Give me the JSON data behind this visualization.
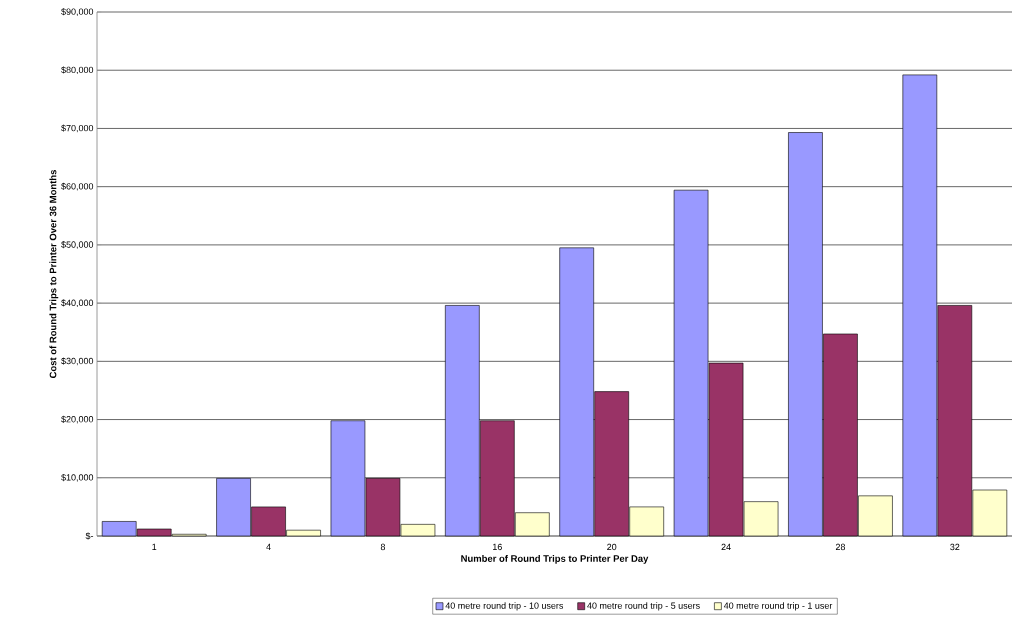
{
  "chart_data": {
    "type": "bar",
    "xlabel": "Number of Round Trips to Printer Per Day",
    "ylabel": "Cost of Round Trips to Printer Over 36 Months",
    "categories": [
      "1",
      "4",
      "8",
      "16",
      "20",
      "24",
      "28",
      "32"
    ],
    "series": [
      {
        "name": "40 metre round trip - 10 users",
        "color": "#9999ff",
        "values": [
          2500,
          9900,
          19800,
          39600,
          49500,
          59400,
          69300,
          79200
        ]
      },
      {
        "name": "40 metre round trip - 5 users",
        "color": "#993366",
        "values": [
          1200,
          5000,
          9900,
          19800,
          24800,
          29700,
          34700,
          39600
        ]
      },
      {
        "name": "40 metre round trip - 1 user",
        "color": "#ffffcc",
        "values": [
          300,
          1000,
          2000,
          4000,
          5000,
          5900,
          6900,
          7900
        ]
      }
    ],
    "ylim": [
      0,
      90000
    ],
    "yticks": [
      {
        "value": 0,
        "label": "$-"
      },
      {
        "value": 10000,
        "label": "$10,000"
      },
      {
        "value": 20000,
        "label": "$20,000"
      },
      {
        "value": 30000,
        "label": "$30,000"
      },
      {
        "value": 40000,
        "label": "$40,000"
      },
      {
        "value": 50000,
        "label": "$50,000"
      },
      {
        "value": 60000,
        "label": "$60,000"
      },
      {
        "value": 70000,
        "label": "$70,000"
      },
      {
        "value": 80000,
        "label": "$80,000"
      },
      {
        "value": 90000,
        "label": "$90,000"
      }
    ],
    "grid": "y",
    "legend": "bottom"
  }
}
